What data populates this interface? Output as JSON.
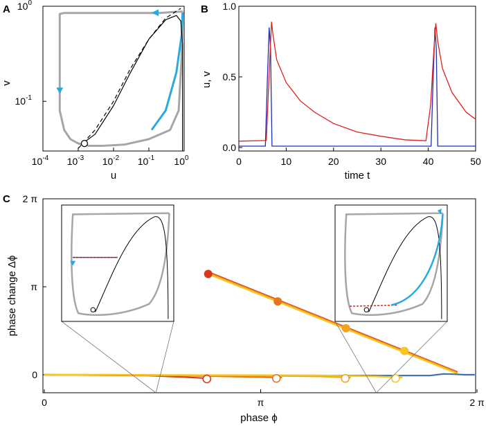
{
  "chart_data": [
    {
      "panel": "A",
      "type": "line",
      "xscale": "log",
      "yscale": "log",
      "xlabel": "u",
      "ylabel": "v",
      "xlim": [
        0.0001,
        1
      ],
      "ylim": [
        0.03,
        1
      ],
      "x_ticks": [
        {
          "v": 0.0001,
          "b": "10",
          "e": "-4"
        },
        {
          "v": 0.001,
          "b": "10",
          "e": "-3"
        },
        {
          "v": 0.01,
          "b": "10",
          "e": "-2"
        },
        {
          "v": 0.1,
          "b": "10",
          "e": "-1"
        },
        {
          "v": 1,
          "b": "10",
          "e": "0"
        }
      ],
      "y_ticks": [
        {
          "v": 0.1,
          "b": "10",
          "e": "-1"
        },
        {
          "v": 1,
          "b": "10",
          "e": "0"
        }
      ],
      "series": [
        {
          "name": "limit cycle",
          "color": "#a6a6a6",
          "u": [
            0.9,
            0.5,
            0.2,
            0.05,
            0.01,
            0.002,
            0.0008,
            0.0004,
            0.0003,
            0.0003,
            0.0003,
            0.0003,
            0.0004,
            0.0006,
            0.001,
            0.002,
            0.005,
            0.02,
            0.1,
            0.4,
            0.7,
            0.85,
            0.9
          ],
          "v": [
            0.88,
            0.87,
            0.85,
            0.85,
            0.85,
            0.85,
            0.85,
            0.85,
            0.83,
            0.3,
            0.15,
            0.08,
            0.05,
            0.04,
            0.036,
            0.034,
            0.034,
            0.035,
            0.04,
            0.05,
            0.08,
            0.3,
            0.88
          ]
        },
        {
          "name": "perturbed segment",
          "color": "#29a9e0",
          "u": [
            0.12,
            0.3,
            0.6,
            0.85,
            0.9
          ],
          "v": [
            0.05,
            0.08,
            0.2,
            0.5,
            0.85
          ]
        },
        {
          "name": "u-nullcline",
          "color": "#000000",
          "u": [
            0.0012,
            0.003,
            0.01,
            0.03,
            0.1,
            0.3,
            0.6,
            0.8,
            0.9,
            0.9
          ],
          "v": [
            0.035,
            0.045,
            0.09,
            0.2,
            0.45,
            0.72,
            0.8,
            0.7,
            0.4,
            0.03
          ]
        },
        {
          "name": "v-nullcline",
          "color": "#000000",
          "style": "dashed",
          "u": [
            0.001,
            0.003,
            0.01,
            0.03,
            0.1,
            0.3,
            0.8
          ],
          "v": [
            0.032,
            0.05,
            0.1,
            0.22,
            0.45,
            0.75,
            0.95
          ]
        }
      ],
      "fixed_point": {
        "u": 0.0015,
        "v": 0.036
      }
    },
    {
      "panel": "B",
      "type": "line",
      "xlabel": "time t",
      "ylabel": "u, v",
      "xlim": [
        0,
        50
      ],
      "ylim": [
        0,
        1
      ],
      "x_ticks": [
        "0",
        "10",
        "20",
        "30",
        "40",
        "50"
      ],
      "y_ticks": [
        "0.0",
        "0.5",
        "1.0"
      ],
      "series": [
        {
          "name": "u",
          "color": "#1f2db5",
          "t": [
            0,
            5.6,
            6.0,
            6.4,
            6.7,
            7.0,
            40,
            40.6,
            41.0,
            41.4,
            41.7,
            42.0,
            50
          ],
          "y": [
            0.01,
            0.01,
            0.45,
            0.85,
            0.7,
            0.01,
            0.01,
            0.01,
            0.45,
            0.85,
            0.7,
            0.01,
            0.01
          ]
        },
        {
          "name": "v",
          "color": "#e0201c",
          "t": [
            0,
            5.8,
            6.5,
            6.9,
            7.2,
            8,
            10,
            13,
            16,
            20,
            25,
            30,
            35,
            39.5,
            40.5,
            41.2,
            41.6,
            42,
            43,
            45,
            48,
            50
          ],
          "y": [
            0.045,
            0.05,
            0.6,
            0.89,
            0.8,
            0.62,
            0.46,
            0.33,
            0.25,
            0.17,
            0.11,
            0.08,
            0.055,
            0.048,
            0.3,
            0.7,
            0.88,
            0.75,
            0.56,
            0.39,
            0.25,
            0.2
          ]
        }
      ]
    },
    {
      "panel": "C",
      "type": "line",
      "xlabel": "phase ϕ",
      "ylabel": "phase change Δϕ",
      "xlim": [
        0,
        6.2832
      ],
      "ylim": [
        -0.25,
        6.2832
      ],
      "x_ticks": [
        {
          "v": 0,
          "t": "0"
        },
        {
          "v": 3.1416,
          "t": "π"
        },
        {
          "v": 6.2832,
          "t": "2 π"
        }
      ],
      "y_ticks": [
        {
          "v": 0,
          "t": "0"
        },
        {
          "v": 3.1416,
          "t": "π"
        },
        {
          "v": 6.2832,
          "t": "2 π"
        }
      ],
      "lines": [
        {
          "name": "advance 1",
          "color": "#d93a1c",
          "x": [
            2.4,
            6.0
          ],
          "y": [
            3.65,
            0.1
          ]
        },
        {
          "name": "advance 2",
          "color": "#e8741c",
          "x": [
            2.4,
            6.0
          ],
          "y": [
            3.63,
            0.08
          ]
        },
        {
          "name": "advance 3",
          "color": "#f2a31e",
          "x": [
            2.4,
            6.0
          ],
          "y": [
            3.6,
            0.06
          ]
        },
        {
          "name": "advance 4",
          "color": "#f5c71f",
          "x": [
            2.4,
            6.0
          ],
          "y": [
            3.58,
            0.04
          ]
        },
        {
          "name": "delay baseline",
          "color": "#3d6fb6",
          "x": [
            0,
            1.0,
            2.0,
            3.0,
            4.0,
            5.0,
            5.6,
            5.8,
            5.95,
            6.1,
            6.25
          ],
          "y": [
            0,
            0,
            -0.02,
            -0.03,
            -0.03,
            -0.03,
            -0.03,
            0.03,
            0.02,
            0,
            0
          ]
        },
        {
          "name": "delay 1",
          "color": "#d93a1c",
          "x": [
            0,
            1.5,
            2.0,
            2.4
          ],
          "y": [
            0,
            -0.03,
            -0.08,
            -0.13
          ]
        },
        {
          "name": "delay 2",
          "color": "#e8741c",
          "x": [
            0,
            2.0,
            3.0,
            3.45
          ],
          "y": [
            0,
            -0.03,
            -0.08,
            -0.1
          ]
        },
        {
          "name": "delay 3",
          "color": "#f2a31e",
          "x": [
            0,
            3.0,
            4.0,
            4.45
          ],
          "y": [
            0,
            -0.03,
            -0.06,
            -0.1
          ]
        },
        {
          "name": "delay 4",
          "color": "#f5c71f",
          "x": [
            0,
            4.0,
            4.8,
            5.2
          ],
          "y": [
            0,
            -0.02,
            -0.06,
            -0.1
          ]
        }
      ],
      "filled_markers": [
        {
          "x": 2.38,
          "y": 3.6,
          "color": "#d93a1c"
        },
        {
          "x": 3.39,
          "y": 2.62,
          "color": "#e8741c"
        },
        {
          "x": 4.38,
          "y": 1.66,
          "color": "#f2a31e"
        },
        {
          "x": 5.23,
          "y": 0.85,
          "color": "#f5c71f"
        }
      ],
      "open_markers": [
        {
          "x": 2.36,
          "y": -0.15,
          "color": "#d93a1c"
        },
        {
          "x": 3.37,
          "y": -0.13,
          "color": "#e8741c"
        },
        {
          "x": 4.37,
          "y": -0.13,
          "color": "#f2a31e"
        },
        {
          "x": 5.1,
          "y": -0.13,
          "color": "#f5c71f"
        }
      ],
      "inset_zoom_anchors": [
        1.62,
        4.82
      ]
    }
  ],
  "panel_labels": {
    "a": "A",
    "b": "B",
    "c": "C"
  }
}
